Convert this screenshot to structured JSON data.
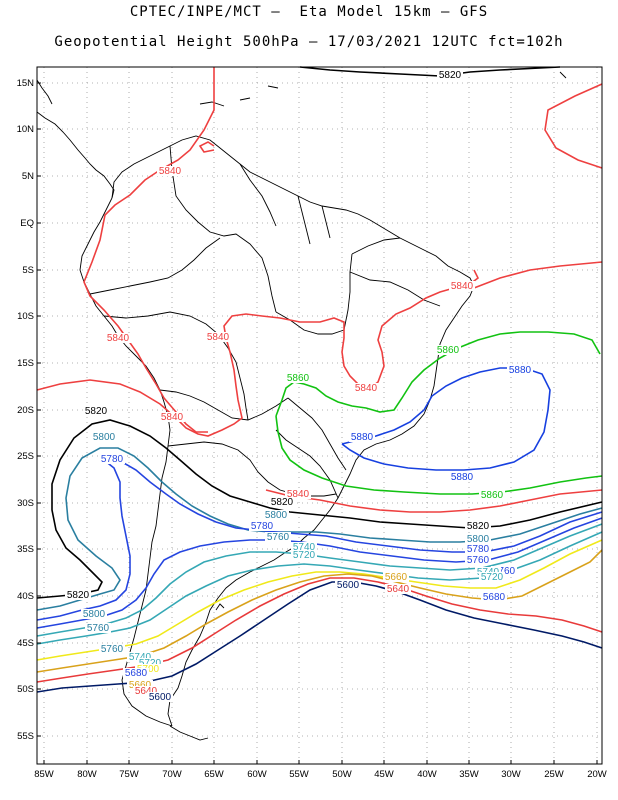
{
  "title_line1": "CPTEC/INPE/MCT –  Eta Model 15km – GFS",
  "title_line2": "Geopotential Height 500hPa – 17/03/2021 12UTC fct=102h",
  "lat_ticks": [
    "15N",
    "10N",
    "5N",
    "EQ",
    "5S",
    "10S",
    "15S",
    "20S",
    "25S",
    "30S",
    "35S",
    "40S",
    "45S",
    "50S",
    "55S"
  ],
  "lon_ticks": [
    "85W",
    "80W",
    "75W",
    "70W",
    "65W",
    "60W",
    "55W",
    "50W",
    "45W",
    "40W",
    "35W",
    "30W",
    "25W",
    "20W"
  ],
  "colors": {
    "c5600": "#001a66",
    "c5640": "#e83a3a",
    "c5680": "#d9a21b",
    "c5720": "#f0e91a",
    "c5740": "#35a8b5",
    "c5760": "#2545e0",
    "c5800": "#2a7fa0",
    "c5820": "#000000",
    "c5840": "#ee4040",
    "c5860": "#12c212",
    "c5880": "#1740e0",
    "border": "#000000",
    "grid": "#9a9a9a"
  },
  "contour_labels": [
    {
      "text": "5820",
      "color": "c5820"
    },
    {
      "text": "5840",
      "color": "c5840"
    },
    {
      "text": "5840",
      "color": "c5840"
    },
    {
      "text": "5840",
      "color": "c5840"
    },
    {
      "text": "5840",
      "color": "c5840"
    },
    {
      "text": "5840",
      "color": "c5840"
    },
    {
      "text": "5840",
      "color": "c5840"
    },
    {
      "text": "5840",
      "color": "c5840"
    },
    {
      "text": "5860",
      "color": "c5860"
    },
    {
      "text": "5860",
      "color": "c5860"
    },
    {
      "text": "5860",
      "color": "c5860"
    },
    {
      "text": "5880",
      "color": "c5880"
    },
    {
      "text": "5880",
      "color": "c5880"
    },
    {
      "text": "5880",
      "color": "c5880"
    },
    {
      "text": "5820",
      "color": "c5820"
    },
    {
      "text": "5820",
      "color": "c5820"
    },
    {
      "text": "5820",
      "color": "c5820"
    },
    {
      "text": "5820",
      "color": "c5820"
    },
    {
      "text": "5800",
      "color": "c5800"
    },
    {
      "text": "5800",
      "color": "c5800"
    },
    {
      "text": "5800",
      "color": "c5800"
    },
    {
      "text": "5800",
      "color": "c5800"
    },
    {
      "text": "5780",
      "color": "c5760"
    },
    {
      "text": "5780",
      "color": "c5760"
    },
    {
      "text": "5780",
      "color": "c5760"
    },
    {
      "text": "5760",
      "color": "c5800"
    },
    {
      "text": "5760",
      "color": "c5760"
    },
    {
      "text": "5760",
      "color": "c5800"
    },
    {
      "text": "5760",
      "color": "c5760"
    },
    {
      "text": "5760",
      "color": "c5800"
    },
    {
      "text": "5740",
      "color": "c5740"
    },
    {
      "text": "5740",
      "color": "c5740"
    },
    {
      "text": "5740",
      "color": "c5740"
    },
    {
      "text": "5720",
      "color": "c5740"
    },
    {
      "text": "5720",
      "color": "c5740"
    },
    {
      "text": "5720",
      "color": "c5740"
    },
    {
      "text": "5700",
      "color": "c5720"
    },
    {
      "text": "5680",
      "color": "c5760"
    },
    {
      "text": "5680",
      "color": "c5760"
    },
    {
      "text": "5660",
      "color": "c5680"
    },
    {
      "text": "5660",
      "color": "c5680"
    },
    {
      "text": "5640",
      "color": "c5640"
    },
    {
      "text": "5640",
      "color": "c5640"
    },
    {
      "text": "5600",
      "color": "c5600"
    },
    {
      "text": "5600",
      "color": "c5600"
    }
  ]
}
